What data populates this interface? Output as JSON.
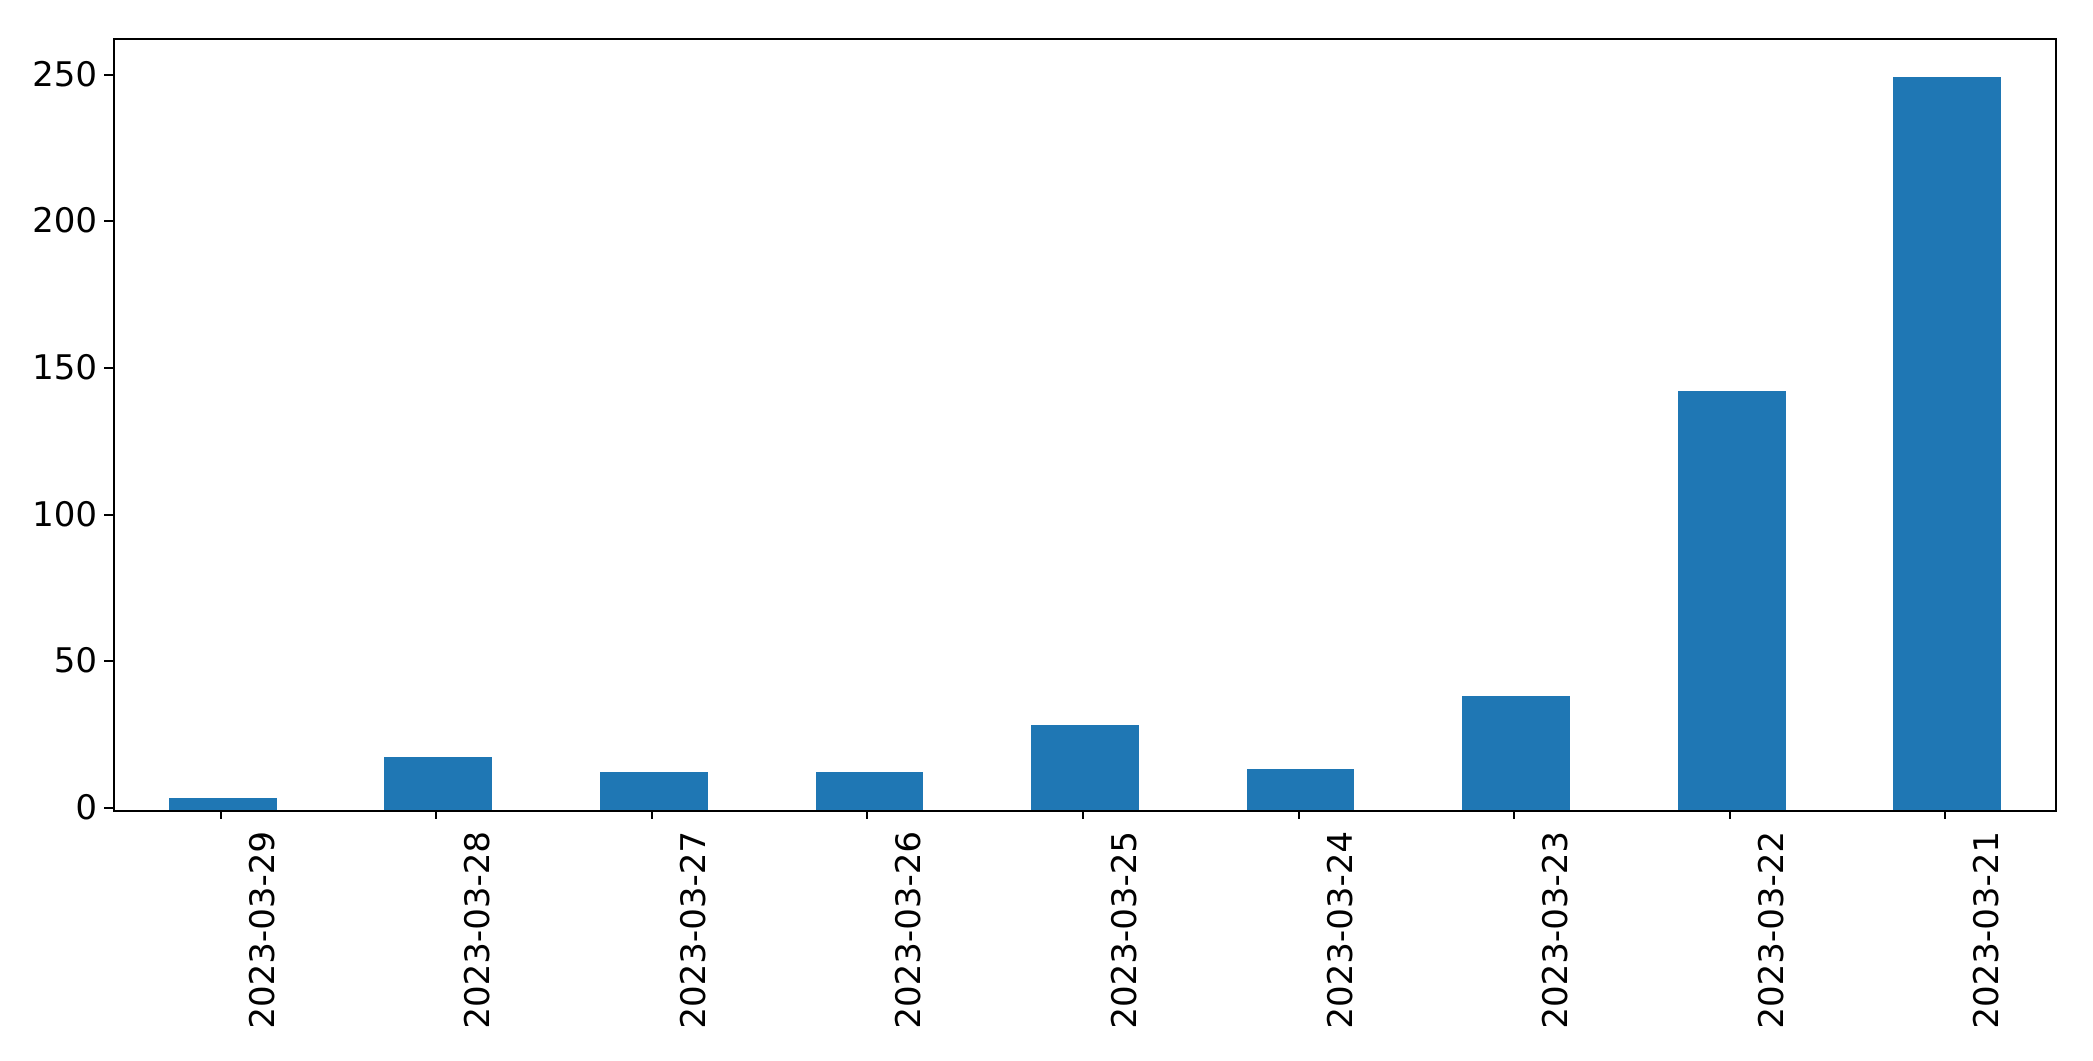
{
  "chart_data": {
    "type": "bar",
    "title": "",
    "xlabel": "",
    "ylabel": "",
    "categories": [
      "2023-03-29",
      "2023-03-28",
      "2023-03-27",
      "2023-03-26",
      "2023-03-25",
      "2023-03-24",
      "2023-03-23",
      "2023-03-22",
      "2023-03-21"
    ],
    "values": [
      4,
      18,
      13,
      13,
      29,
      14,
      39,
      143,
      250
    ],
    "yticks": [
      0,
      50,
      100,
      150,
      200,
      250
    ],
    "ylim": [
      0,
      262.5
    ],
    "bar_color": "#1f77b4",
    "axis_color": "#000000",
    "text_color": "#000000",
    "background_color": "#ffffff",
    "grid": false,
    "legend": "none",
    "x_tick_rotation_degrees": 90,
    "bar_width_fraction": 0.5
  }
}
